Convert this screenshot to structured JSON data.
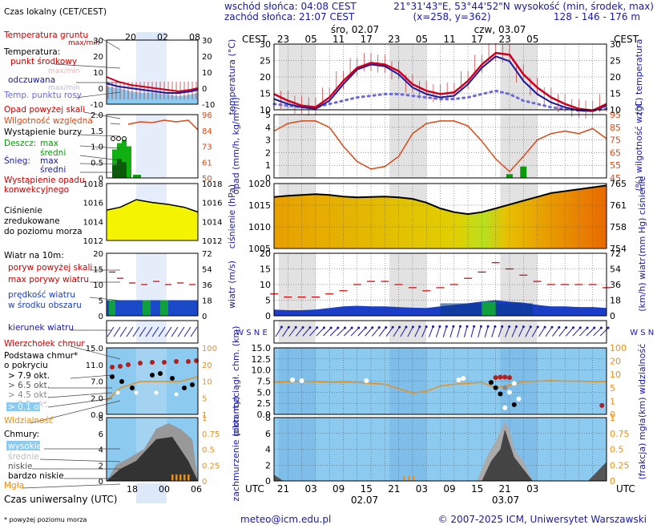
{
  "header": {
    "sunrise": "wschód słońca: 04:08 CEST",
    "sunset": "zachód słońca: 21:07 CEST",
    "coords": "21°31'43\"E, 53°44'52\"N",
    "grid": "(x=258, y=362)",
    "height_label": "wysokość (min, środek, max)",
    "height_values": "128 - 146 - 176 m"
  },
  "footer": {
    "email": "meteo@icm.edu.pl",
    "copyright": "© 2007-2025 ICM, Uniwersytet Warszawski",
    "note": "* powyżej poziomu morza",
    "utc_legend": "Czas uniwersalny (UTC)",
    "utc_label": "UTC"
  },
  "time_axis": {
    "cest_label": "CEST",
    "cest_ticks": [
      "23",
      "05",
      "11",
      "17",
      "23",
      "05",
      "11",
      "17",
      "23",
      "05"
    ],
    "utc_ticks": [
      "21",
      "03",
      "09",
      "15",
      "21",
      "03",
      "09",
      "15",
      "21",
      "03"
    ],
    "day_labels_top": [
      "śro, 02.07",
      "czw, 03.07"
    ],
    "day_labels_bottom": [
      "02.07",
      "03.07"
    ],
    "legend_top_ticks": [
      "20",
      "02",
      "08"
    ],
    "legend_bottom_ticks": [
      "18",
      "00",
      "06"
    ]
  },
  "legend": {
    "local_time": "Czas lokalny (CET/CEST)",
    "ground_temp": "Temperatura gruntu",
    "ground_temp_sub": "max/min",
    "temperature": "Temperatura:",
    "temp_mid": "punkt środkowy",
    "temp_maxmin": "max/min",
    "perceived": "odczuwana",
    "perceived_sub": "max/min",
    "dew": "Temp. punktu rosy",
    "precip_above": "Opad powyżej skali",
    "humidity": "Wilgotność względna",
    "storm": "Wystąpienie burzy",
    "rain": "Deszcz:",
    "max": "max",
    "mean": "średni",
    "snow": "Śnieg:",
    "conv": "Wystąpienie opadu konwekcyjnego",
    "pressure": "Ciśnienie zredukowane do poziomu morza",
    "wind": "Wiatr na 10m:",
    "gust_above": "poryw powyżej skali",
    "max_gust": "max porywy wiatru",
    "mean_wind": "prędkość wiatru w środku obszaru",
    "wind_dir": "kierunek wiatru",
    "cb_top": "Wierzchołek chmur",
    "cloud_base": "Podstawa chmur* o pokryciu",
    "okt": [
      "> 7.9 okt.",
      "> 6.5 okt.",
      "> 4.5 okt.",
      "> 2.5 okt.",
      "> 0.1 okt."
    ],
    "visibility": "Widzialność",
    "clouds": "Chmury:",
    "cl_high": "wysokie",
    "cl_mid": "średnie",
    "cl_low": "niskie",
    "cl_vlow": "bardzo niskie",
    "fog": "Mgła"
  },
  "panel_labels": {
    "temp_left": "temperatura (°C)",
    "temp_right": "(°C) temperatura",
    "precip_left": "opad (mm/h, kg/m²/h)",
    "precip_right": "(%) wilgotność wzgl.",
    "press_left": "ciśnienie (hPa)",
    "press_right": "(mm Hg) ciśnienie",
    "wind_left": "wiatr (m/s)",
    "wind_right": "(km/h) wiatr",
    "cloudbase_left": "pion. rozciągł. chm. (km)",
    "cloudbase_right": "(km) widzialność",
    "cloudcover_left": "zachmurzenie (oktanty)",
    "cloudcover_right": "(frakcja) mgła",
    "wsne": "W S N E"
  },
  "axes": {
    "temp_left": [
      "30",
      "25",
      "20",
      "15",
      "10"
    ],
    "temp_right": [
      "30",
      "25",
      "20",
      "15",
      "10"
    ],
    "precip_left": [
      "5",
      "4",
      "3",
      "2",
      "1",
      "0"
    ],
    "precip_right": [
      "95",
      "85",
      "75",
      "65",
      "55",
      "45"
    ],
    "press_left": [
      "1020",
      "1015",
      "1010",
      "1005"
    ],
    "press_right": [
      "765",
      "761",
      "758",
      "754"
    ],
    "wind_left": [
      "20",
      "15",
      "10",
      "5",
      "0"
    ],
    "wind_right": [
      "72",
      "54",
      "36",
      "18",
      "0"
    ],
    "cb_left": [
      "15.0",
      "12.5",
      "10.0",
      "7.5",
      "5.0",
      "2.5",
      "0.0"
    ],
    "cb_right": [
      "100",
      "20",
      "10",
      "5",
      "1",
      "0"
    ],
    "cc_left": [
      "8",
      "6",
      "4",
      "2",
      "0"
    ],
    "cc_right": [
      "1",
      "0.75",
      "0.5",
      "0.25",
      "0"
    ]
  },
  "legend_axes": {
    "temp_left": [
      "30",
      "20",
      "10",
      "0",
      "-10"
    ],
    "temp_right": [
      "30",
      "20",
      "10",
      "0",
      "-10"
    ],
    "precip_left": [
      "2.0",
      "1.5",
      "1.0",
      "0.5",
      "0"
    ],
    "precip_right": [
      "96",
      "84",
      "73",
      "61",
      "50"
    ],
    "press_left": [
      "1018",
      "1016",
      "1014",
      "1012"
    ],
    "press_right": [
      "1018",
      "1016",
      "1014",
      "1012"
    ],
    "wind_left": [
      "20",
      "15",
      "10",
      "5",
      "0"
    ],
    "wind_right": [
      "72",
      "54",
      "36",
      "18",
      "0"
    ],
    "cb_left": [
      "15.0",
      "11.0",
      "7.0",
      "2.0",
      "0.0"
    ],
    "cb_right": [
      "100",
      "20",
      "10",
      "5",
      "1"
    ],
    "cc_left": [
      "8",
      "6",
      "4",
      "2",
      "0"
    ],
    "cc_right": [
      "1",
      "0.75",
      "0.5",
      "0.25",
      "0"
    ]
  },
  "colors": {
    "temp": "#cc0022",
    "perceived": "#1a1a9a",
    "dew": "#6a6ad8",
    "humidity": "#d84a18",
    "pressure": "#000000",
    "gust": "#cc0000",
    "wind": "#1a3ec8",
    "orange": "#e8901a",
    "sky": "#8ccaf0",
    "night": "#d8d8d8"
  },
  "chart_data": [
    {
      "type": "line",
      "title": "temperatura",
      "x_hours": [
        0,
        3,
        6,
        9,
        12,
        15,
        18,
        21,
        24,
        27,
        30,
        33,
        36,
        39,
        42,
        45,
        48,
        51,
        54,
        57,
        60,
        63,
        66,
        69,
        72
      ],
      "ylim": [
        10,
        30
      ],
      "series": [
        {
          "name": "punkt środkowy",
          "values": [
            16,
            14,
            12.5,
            12,
            15,
            20,
            24,
            25.5,
            25,
            23,
            19,
            17,
            16,
            16.5,
            20,
            25,
            28.5,
            28,
            22,
            18,
            15,
            13,
            11.5,
            11,
            13
          ]
        },
        {
          "name": "odczuwana",
          "values": [
            14.5,
            13,
            12,
            11.5,
            14,
            19,
            23.5,
            25,
            24.5,
            22,
            18,
            16,
            15,
            15.5,
            19,
            24,
            27.5,
            26,
            20,
            16,
            13.5,
            12,
            11,
            10.8,
            12.5
          ]
        },
        {
          "name": "Temp. punktu rosy",
          "values": [
            13,
            12.5,
            12,
            12,
            13,
            14,
            15,
            15.5,
            16,
            16,
            15.5,
            15,
            14.5,
            14.5,
            15,
            16,
            17,
            16,
            14,
            13,
            12,
            11.5,
            11,
            11,
            11.5
          ]
        }
      ]
    },
    {
      "type": "line",
      "title": "opad / wilgotność",
      "x_hours": [
        0,
        3,
        6,
        9,
        12,
        15,
        18,
        21,
        24,
        27,
        30,
        33,
        36,
        39,
        42,
        45,
        48,
        51,
        54,
        57,
        60,
        63,
        66,
        69,
        72
      ],
      "ylim": [
        45,
        95
      ],
      "series": [
        {
          "name": "Wilgotność względna",
          "values": [
            82,
            88,
            90,
            90,
            85,
            70,
            58,
            52,
            54,
            62,
            80,
            88,
            90,
            90,
            86,
            74,
            60,
            50,
            62,
            75,
            80,
            82,
            80,
            84,
            76
          ]
        },
        {
          "name": "opad",
          "values": [
            0,
            0,
            0,
            0,
            0,
            0,
            0,
            0,
            0,
            0,
            0,
            0,
            0,
            0,
            0,
            0,
            0,
            0.1,
            0.3,
            0,
            0,
            0,
            0,
            0,
            0
          ]
        }
      ]
    },
    {
      "type": "area",
      "title": "ciśnienie",
      "x_hours": [
        0,
        3,
        6,
        9,
        12,
        15,
        18,
        21,
        24,
        27,
        30,
        33,
        36,
        39,
        42,
        45,
        48,
        51,
        54,
        57,
        60,
        63,
        66,
        69,
        72
      ],
      "ylim": [
        1005,
        1022
      ],
      "series": [
        {
          "name": "Ciśnienie",
          "values": [
            1018.5,
            1018.8,
            1019,
            1019.2,
            1019,
            1018.6,
            1018.4,
            1018.5,
            1018.6,
            1018.4,
            1018,
            1017,
            1015.5,
            1014.5,
            1014,
            1014.5,
            1015.5,
            1016.5,
            1017.5,
            1018.5,
            1019.5,
            1020,
            1020.5,
            1021,
            1021.5
          ]
        }
      ]
    },
    {
      "type": "line",
      "title": "wiatr",
      "x_hours": [
        0,
        3,
        6,
        9,
        12,
        15,
        18,
        21,
        24,
        27,
        30,
        33,
        36,
        39,
        42,
        45,
        48,
        51,
        54,
        57,
        60,
        63,
        66,
        69,
        72
      ],
      "ylim": [
        0,
        20
      ],
      "series": [
        {
          "name": "max porywy wiatru",
          "values": [
            7,
            6,
            6,
            6,
            7,
            8,
            10,
            11,
            11,
            10,
            9,
            8,
            9,
            10,
            12,
            14,
            17,
            15,
            13,
            11,
            10,
            10,
            10,
            10,
            9
          ]
        },
        {
          "name": "prędkość wiatru",
          "values": [
            2,
            1.8,
            1.8,
            2,
            2.5,
            3,
            3.2,
            3,
            3,
            2.8,
            2.6,
            2.5,
            3,
            3.5,
            4,
            4.6,
            5,
            4.5,
            4.2,
            3.5,
            3,
            3,
            2.8,
            2.8,
            2.5
          ]
        }
      ]
    },
    {
      "type": "line",
      "title": "widzialność",
      "x_hours": [
        0,
        3,
        6,
        9,
        12,
        15,
        18,
        21,
        24,
        27,
        30,
        33,
        36,
        39,
        42,
        45,
        48,
        51,
        54,
        57,
        60,
        63,
        66,
        69,
        72
      ],
      "ylim": [
        0,
        15
      ],
      "series": [
        {
          "name": "Widzialność",
          "values": [
            7.2,
            7.4,
            7.5,
            7.4,
            7.2,
            7.3,
            7.2,
            7.0,
            6.8,
            5.8,
            4.8,
            5.2,
            6.4,
            6.8,
            7.0,
            7.2,
            6.0,
            6.6,
            7.4,
            7.5,
            7.6,
            7.5,
            7.5,
            7.4,
            7.4
          ]
        }
      ]
    }
  ]
}
